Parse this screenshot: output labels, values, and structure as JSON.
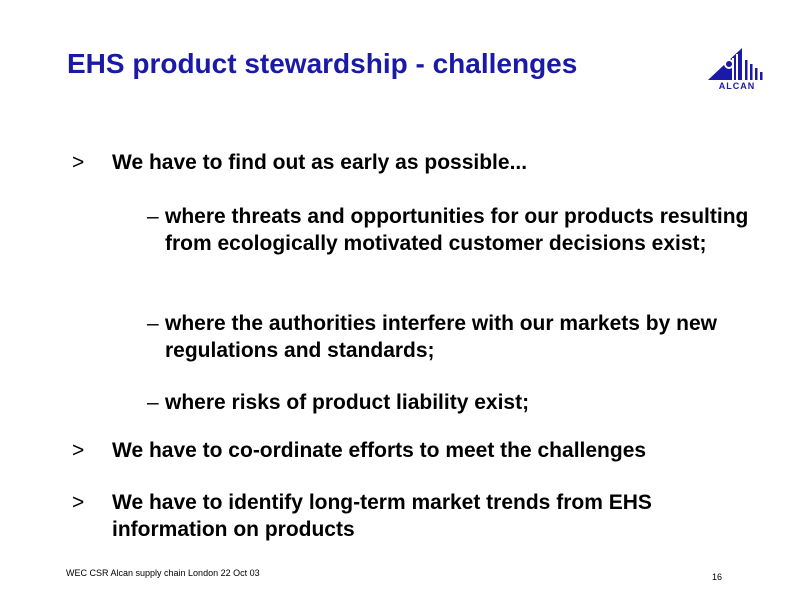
{
  "slide": {
    "title": "EHS product stewardship - challenges",
    "logo": {
      "icon": "alcan-logo-icon",
      "text": "ALCAN",
      "color": "#1a1aa6"
    },
    "bullet_marker": ">",
    "sub_marker": "–",
    "bullets": [
      {
        "text": "We have to find out as early as possible..."
      },
      {
        "text": "We have to co-ordinate efforts to meet the challenges"
      },
      {
        "text": "We have to identify long-term market trends from EHS information on products"
      }
    ],
    "sub_bullets": [
      {
        "text": "where threats and opportunities for our products resulting from ecologically motivated customer decisions exist;"
      },
      {
        "text": "where the authorities interfere with our markets by new regulations and standards;"
      },
      {
        "text": "where risks of product liability exist;"
      }
    ],
    "footer": "WEC CSR Alcan supply chain London 22 Oct 03",
    "page_number": "16",
    "title_color": "#1a1aa6"
  }
}
